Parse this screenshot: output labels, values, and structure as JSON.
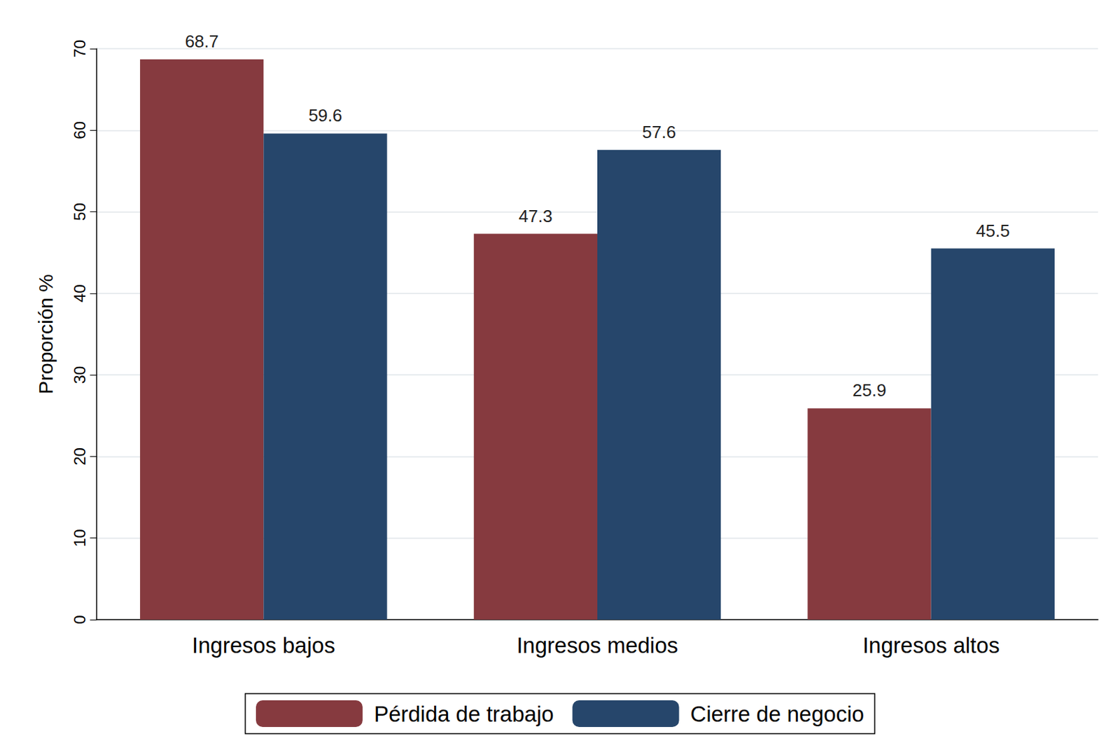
{
  "chart_data": {
    "type": "bar",
    "y_label": "Proporción %",
    "categories": [
      "Ingresos bajos",
      "Ingresos medios",
      "Ingresos altos"
    ],
    "series": [
      {
        "name": "Pérdida de trabajo",
        "color": "#863a3f",
        "values": [
          68.7,
          47.3,
          25.9
        ]
      },
      {
        "name": "Cierre de negocio",
        "color": "#26466b",
        "values": [
          59.6,
          57.6,
          45.5
        ]
      }
    ],
    "ylim": [
      0,
      70
    ],
    "yticks": [
      0,
      10,
      20,
      30,
      40,
      50,
      60,
      70
    ],
    "grid": true,
    "legend": "bottom",
    "data_labels": true
  }
}
